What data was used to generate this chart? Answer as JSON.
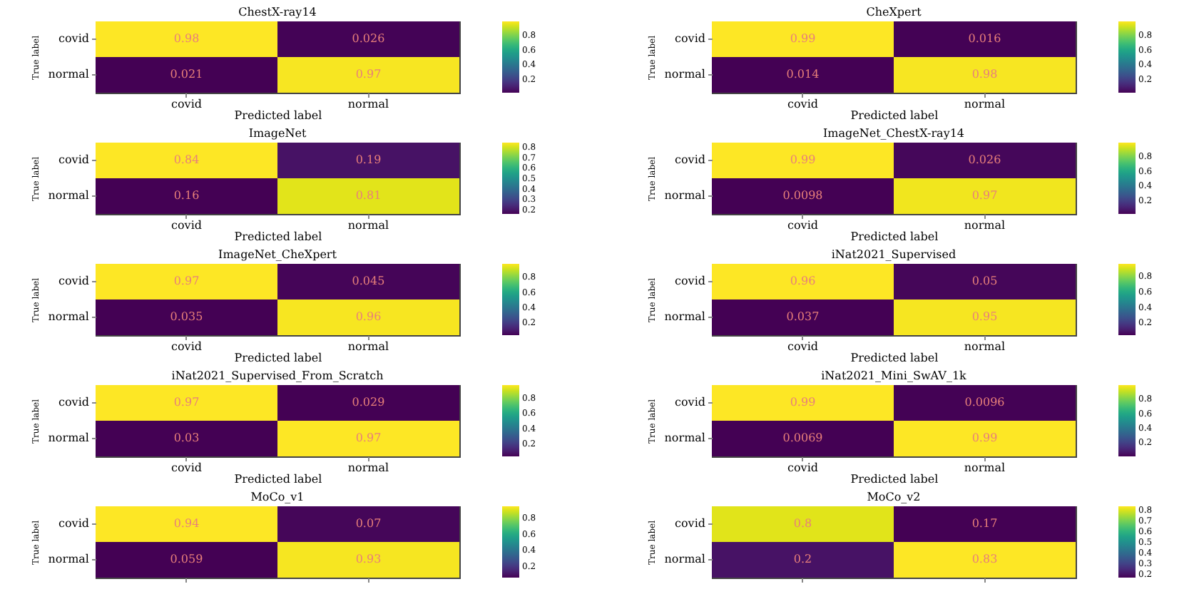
{
  "chart_data": [
    {
      "type": "heatmap",
      "title": "ChestX-ray14",
      "xlabel": "Predicted label",
      "ylabel": "True label",
      "categories": [
        "covid",
        "normal"
      ],
      "y_categories": [
        "covid",
        "normal"
      ],
      "cells": [
        [
          0.98,
          0.026
        ],
        [
          0.021,
          0.97
        ]
      ],
      "data_labels": true,
      "clim": [
        0.021,
        0.98
      ],
      "cticks": [
        0.2,
        0.4,
        0.6,
        0.8
      ]
    },
    {
      "type": "heatmap",
      "title": "CheXpert",
      "xlabel": "Predicted label",
      "ylabel": "True label",
      "categories": [
        "covid",
        "normal"
      ],
      "y_categories": [
        "covid",
        "normal"
      ],
      "cells": [
        [
          0.99,
          0.016
        ],
        [
          0.014,
          0.98
        ]
      ],
      "data_labels": true,
      "clim": [
        0.014,
        0.99
      ],
      "cticks": [
        0.2,
        0.4,
        0.6,
        0.8
      ]
    },
    {
      "type": "heatmap",
      "title": "ImageNet",
      "xlabel": "Predicted label",
      "ylabel": "True label",
      "categories": [
        "covid",
        "normal"
      ],
      "y_categories": [
        "covid",
        "normal"
      ],
      "cells": [
        [
          0.84,
          0.19
        ],
        [
          0.16,
          0.81
        ]
      ],
      "data_labels": true,
      "clim": [
        0.16,
        0.84
      ],
      "cticks": [
        0.2,
        0.3,
        0.4,
        0.5,
        0.6,
        0.7,
        0.8
      ]
    },
    {
      "type": "heatmap",
      "title": "ImageNet_ChestX-ray14",
      "xlabel": "Predicted label",
      "ylabel": "True label",
      "categories": [
        "covid",
        "normal"
      ],
      "y_categories": [
        "covid",
        "normal"
      ],
      "cells": [
        [
          0.99,
          0.026
        ],
        [
          0.0098,
          0.97
        ]
      ],
      "data_labels": true,
      "clim": [
        0.0098,
        0.99
      ],
      "cticks": [
        0.2,
        0.4,
        0.6,
        0.8
      ]
    },
    {
      "type": "heatmap",
      "title": "ImageNet_CheXpert",
      "xlabel": "Predicted label",
      "ylabel": "True label",
      "categories": [
        "covid",
        "normal"
      ],
      "y_categories": [
        "covid",
        "normal"
      ],
      "cells": [
        [
          0.97,
          0.045
        ],
        [
          0.035,
          0.96
        ]
      ],
      "data_labels": true,
      "clim": [
        0.035,
        0.97
      ],
      "cticks": [
        0.2,
        0.4,
        0.6,
        0.8
      ]
    },
    {
      "type": "heatmap",
      "title": "iNat2021_Supervised",
      "xlabel": "Predicted label",
      "ylabel": "True label",
      "categories": [
        "covid",
        "normal"
      ],
      "y_categories": [
        "covid",
        "normal"
      ],
      "cells": [
        [
          0.96,
          0.05
        ],
        [
          0.037,
          0.95
        ]
      ],
      "data_labels": true,
      "clim": [
        0.037,
        0.96
      ],
      "cticks": [
        0.2,
        0.4,
        0.6,
        0.8
      ]
    },
    {
      "type": "heatmap",
      "title": "iNat2021_Supervised_From_Scratch",
      "xlabel": "Predicted label",
      "ylabel": "True label",
      "categories": [
        "covid",
        "normal"
      ],
      "y_categories": [
        "covid",
        "normal"
      ],
      "cells": [
        [
          0.97,
          0.029
        ],
        [
          0.03,
          0.97
        ]
      ],
      "data_labels": true,
      "clim": [
        0.029,
        0.97
      ],
      "cticks": [
        0.2,
        0.4,
        0.6,
        0.8
      ]
    },
    {
      "type": "heatmap",
      "title": "iNat2021_Mini_SwAV_1k",
      "xlabel": "Predicted label",
      "ylabel": "True label",
      "categories": [
        "covid",
        "normal"
      ],
      "y_categories": [
        "covid",
        "normal"
      ],
      "cells": [
        [
          0.99,
          0.0096
        ],
        [
          0.0069,
          0.99
        ]
      ],
      "data_labels": true,
      "clim": [
        0.0069,
        0.99
      ],
      "cticks": [
        0.2,
        0.4,
        0.6,
        0.8
      ]
    },
    {
      "type": "heatmap",
      "title": "MoCo_v1",
      "ylabel": "True label",
      "categories": [
        null,
        null
      ],
      "y_categories": [
        "covid",
        "normal"
      ],
      "cells": [
        [
          0.94,
          0.07
        ],
        [
          0.059,
          0.93
        ]
      ],
      "data_labels": true,
      "clim": [
        0.059,
        0.94
      ],
      "cticks": [
        0.2,
        0.4,
        0.6,
        0.8
      ]
    },
    {
      "type": "heatmap",
      "title": "MoCo_v2",
      "ylabel": "True label",
      "categories": [
        null,
        null
      ],
      "y_categories": [
        "covid",
        "normal"
      ],
      "cells": [
        [
          0.8,
          0.17
        ],
        [
          0.2,
          0.83
        ]
      ],
      "data_labels": true,
      "clim": [
        0.17,
        0.83
      ],
      "cticks": [
        0.2,
        0.3,
        0.4,
        0.5,
        0.6,
        0.7,
        0.8
      ]
    }
  ]
}
